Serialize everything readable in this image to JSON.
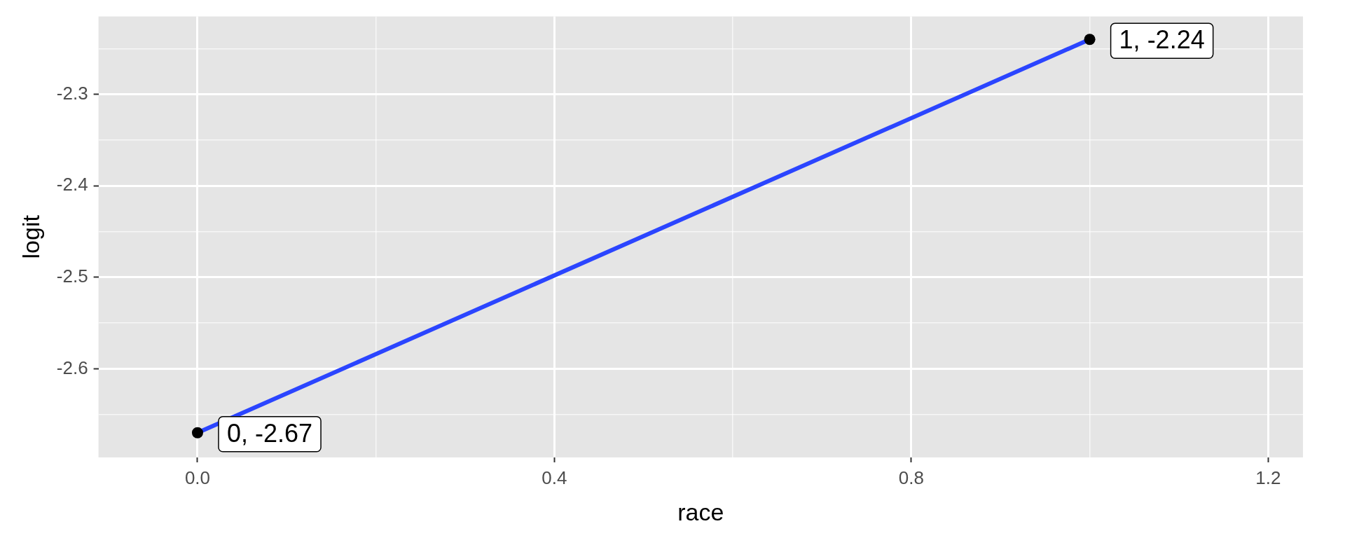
{
  "chart_data": {
    "type": "line",
    "xlabel": "race",
    "ylabel": "logit",
    "x": [
      0,
      1
    ],
    "series": [
      {
        "type": "line",
        "color": "#2b45ff",
        "values": [
          -2.67,
          -2.24
        ],
        "marker": "none"
      },
      {
        "type": "scatter",
        "color": "#000000",
        "values": [
          -2.67,
          -2.24
        ],
        "marker": "circle"
      }
    ],
    "xlim": [
      -0.111,
      1.239
    ],
    "ylim": [
      -2.697,
      -2.215
    ],
    "xticks": [
      {
        "value": 0,
        "label": "0.0"
      },
      {
        "value": 0.2,
        "label": null
      },
      {
        "value": 0.4,
        "label": "0.4"
      },
      {
        "value": 0.6,
        "label": null
      },
      {
        "value": 0.8,
        "label": "0.8"
      },
      {
        "value": 1.0,
        "label": null
      },
      {
        "value": 1.2,
        "label": "1.2"
      }
    ],
    "yticks": [
      {
        "value": -2.65,
        "label": null
      },
      -2.6,
      {
        "value": -2.55,
        "label": null
      },
      -2.5,
      {
        "value": -2.45,
        "label": null
      },
      -2.4,
      {
        "value": -2.35,
        "label": null
      },
      -2.3,
      {
        "value": -2.25,
        "label": null
      }
    ],
    "grid": true,
    "annotations": [
      {
        "text": "0, -2.67",
        "x": 0,
        "y": -2.67
      },
      {
        "text": "1, -2.24",
        "x": 1,
        "y": -2.24
      }
    ]
  }
}
